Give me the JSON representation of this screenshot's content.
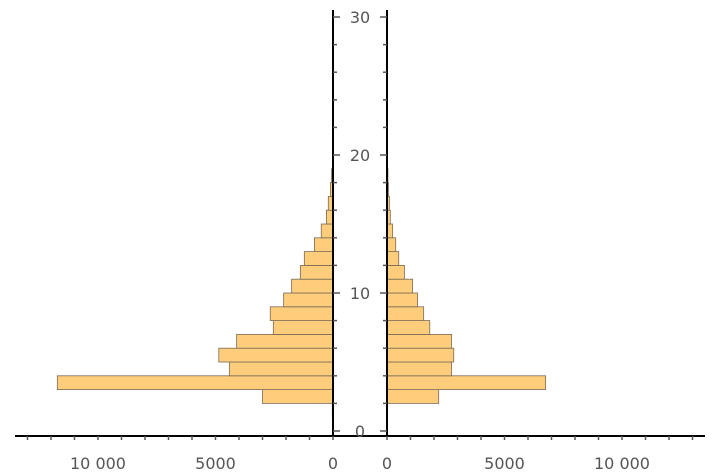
{
  "chart_data": {
    "type": "bar",
    "orientation": "paired-horizontal-histogram",
    "bin_edges": [
      1,
      2,
      3,
      4,
      5,
      6,
      7,
      8,
      9,
      10,
      11,
      12,
      13,
      14,
      15,
      16,
      17,
      18,
      19
    ],
    "series": [
      {
        "side": "left",
        "values": [
          30,
          3000,
          11730,
          4410,
          4860,
          4100,
          2540,
          2670,
          2100,
          1760,
          1390,
          1220,
          790,
          500,
          280,
          200,
          110,
          60
        ]
      },
      {
        "side": "right",
        "values": [
          0,
          2200,
          6750,
          2750,
          2840,
          2750,
          1820,
          1560,
          1300,
          1090,
          740,
          500,
          370,
          240,
          140,
          100,
          60,
          40
        ]
      }
    ],
    "y_ticks": [
      "0",
      "10",
      "20",
      "30"
    ],
    "ylim": [
      0,
      30.5
    ],
    "x_ticks_left": [
      "10 000",
      "5000",
      "0"
    ],
    "x_ticks_right": [
      "0",
      "5000",
      "10 000"
    ],
    "xlim": [
      0,
      13500
    ],
    "bar_color": "#fdcd7c",
    "edge_color": "#7a6a55",
    "grid": false
  }
}
